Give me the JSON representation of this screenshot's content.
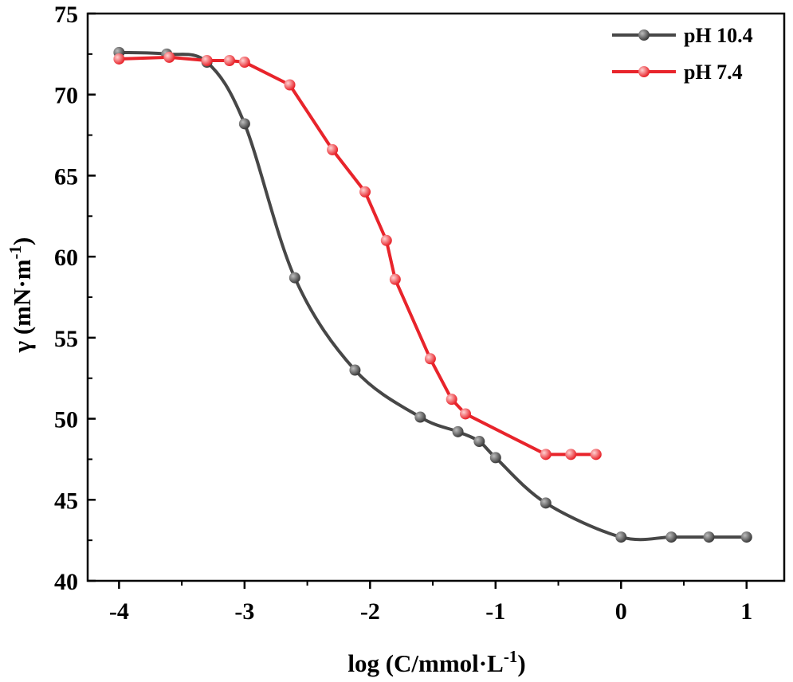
{
  "chart_data": {
    "type": "line",
    "title": "",
    "xlabel_main": "log (C/mmol·L",
    "xlabel_sup": "-1",
    "xlabel_end": ")",
    "ylabel_main": "γ (mN·m",
    "ylabel_sup": "-1",
    "ylabel_end": ")",
    "xlim": [
      -4.25,
      1.3
    ],
    "ylim": [
      40,
      75
    ],
    "xticks": [
      -4,
      -3,
      -2,
      -1,
      0,
      1
    ],
    "xtick_labels": [
      "-4",
      "-3",
      "-2",
      "-1",
      "0",
      "1"
    ],
    "yticks": [
      40,
      45,
      50,
      55,
      60,
      65,
      70,
      75
    ],
    "ytick_labels": [
      "40",
      "45",
      "50",
      "55",
      "60",
      "65",
      "70",
      "75"
    ],
    "legend_position": "top-right",
    "grid": false,
    "series": [
      {
        "name": "pH 10.4",
        "color": "#474747",
        "smooth": true,
        "x": [
          -4.0,
          -3.62,
          -3.3,
          -3.0,
          -2.6,
          -2.12,
          -1.6,
          -1.3,
          -1.13,
          -1.0,
          -0.6,
          0.0,
          0.4,
          0.7,
          1.0
        ],
        "y": [
          72.6,
          72.5,
          72.0,
          68.2,
          58.7,
          53.0,
          50.1,
          49.2,
          48.6,
          47.6,
          44.8,
          42.7,
          42.7,
          42.7,
          42.7
        ]
      },
      {
        "name": "pH 7.4",
        "color": "#e8242b",
        "smooth": false,
        "x": [
          -4.0,
          -3.6,
          -3.3,
          -3.12,
          -3.0,
          -2.64,
          -2.3,
          -2.04,
          -1.87,
          -1.8,
          -1.52,
          -1.35,
          -1.24,
          -0.6,
          -0.4,
          -0.2
        ],
        "y": [
          72.2,
          72.3,
          72.1,
          72.1,
          72.0,
          70.6,
          66.6,
          64.0,
          61.0,
          58.6,
          53.7,
          51.2,
          50.3,
          47.8,
          47.8,
          47.8
        ]
      }
    ]
  }
}
